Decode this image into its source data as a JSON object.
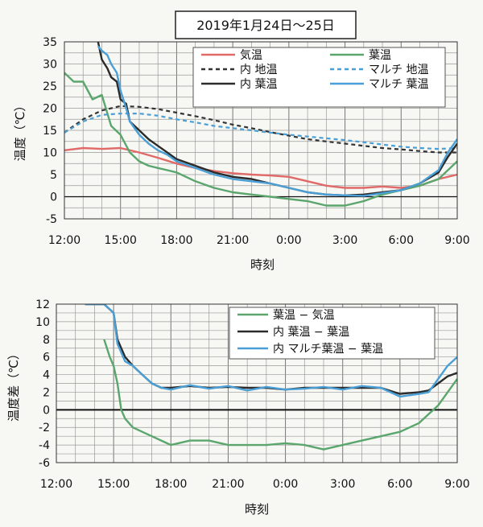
{
  "figure_title": "2019年1月24日～25日",
  "chart_data": [
    {
      "type": "line",
      "xlabel": "時刻",
      "ylabel": "温度（℃）",
      "x_ticks": [
        "12:00",
        "15:00",
        "18:00",
        "21:00",
        "0:00",
        "3:00",
        "6:00",
        "9:00"
      ],
      "x_range_hours": [
        12,
        33
      ],
      "ylim": [
        -5,
        35
      ],
      "y_ticks": [
        -5,
        0,
        5,
        10,
        15,
        20,
        25,
        30,
        35
      ],
      "grid": true,
      "legend_position": "top-right",
      "series": [
        {
          "name": "気温",
          "color": "#e06a68",
          "dash": "solid",
          "x": [
            12,
            13,
            14,
            15,
            16,
            17,
            18,
            19,
            20,
            21,
            22,
            23,
            24,
            25,
            26,
            27,
            28,
            29,
            30,
            31,
            32,
            33
          ],
          "y": [
            10.5,
            11,
            10.8,
            11,
            10,
            8.8,
            7.5,
            6.5,
            5.8,
            5.3,
            5,
            4.8,
            4.5,
            3.5,
            2.5,
            2,
            2,
            2.3,
            2,
            2.5,
            4,
            5
          ]
        },
        {
          "name": "葉温",
          "color": "#5aa66c",
          "dash": "solid",
          "x": [
            12,
            12.5,
            13,
            13.5,
            14,
            14.5,
            15,
            15.5,
            16,
            16.5,
            17,
            17.5,
            18,
            19,
            20,
            21,
            22,
            23,
            24,
            25,
            26,
            27,
            28,
            29,
            30,
            31,
            32,
            33
          ],
          "y": [
            28,
            26,
            26,
            22,
            23,
            16,
            14,
            10,
            8,
            7,
            6.5,
            6,
            5.5,
            3.5,
            2,
            1,
            0.5,
            0,
            -0.5,
            -1,
            -2,
            -2,
            -1,
            0.5,
            1.5,
            2.5,
            4,
            8
          ]
        },
        {
          "name": "内 地温",
          "color": "#333333",
          "dash": "dashed",
          "x": [
            12,
            13,
            14,
            15,
            16,
            17,
            18,
            19,
            20,
            21,
            22,
            23,
            24,
            25,
            26,
            27,
            28,
            29,
            30,
            31,
            32,
            33
          ],
          "y": [
            14.5,
            17.5,
            19.5,
            20.5,
            20.3,
            19.8,
            19,
            18.2,
            17.3,
            16.3,
            15.5,
            14.6,
            13.8,
            13,
            12.5,
            12,
            11.5,
            11,
            10.7,
            10.3,
            10,
            10
          ]
        },
        {
          "name": "マルチ 地温",
          "color": "#4a9fd6",
          "dash": "dashed",
          "x": [
            12,
            13,
            14,
            15,
            16,
            17,
            18,
            19,
            20,
            21,
            22,
            23,
            24,
            25,
            26,
            27,
            28,
            29,
            30,
            31,
            32,
            33
          ],
          "y": [
            14.5,
            17,
            18.5,
            18.8,
            18.8,
            18.3,
            17.5,
            16.8,
            16,
            15.5,
            15,
            14.5,
            14,
            13.6,
            13.2,
            12.8,
            12.3,
            11.8,
            11.3,
            11,
            10.8,
            11
          ]
        },
        {
          "name": "内 葉温",
          "color": "#2b2b2b",
          "dash": "solid",
          "x": [
            13.8,
            14,
            14.3,
            14.5,
            14.8,
            15,
            15.3,
            15.5,
            16,
            16.5,
            17,
            17.5,
            18,
            19,
            20,
            21,
            22,
            23,
            24,
            25,
            26,
            27,
            28,
            29,
            30,
            31,
            32,
            32.5,
            33
          ],
          "y": [
            35,
            31,
            29,
            27,
            26,
            22,
            21,
            17,
            15,
            13,
            11.5,
            10,
            8.5,
            7,
            5.5,
            4.5,
            4,
            3,
            2,
            1,
            0.5,
            0.3,
            0.5,
            1,
            1.5,
            3,
            5.5,
            9,
            12
          ]
        },
        {
          "name": "マルチ 葉温",
          "color": "#4a9fd6",
          "dash": "solid",
          "x": [
            13.8,
            14,
            14.3,
            14.5,
            14.8,
            15,
            15.3,
            15.5,
            16,
            16.5,
            17,
            17.5,
            18,
            19,
            20,
            21,
            22,
            23,
            24,
            25,
            26,
            27,
            28,
            29,
            30,
            31,
            32,
            32.5,
            33
          ],
          "y": [
            34,
            33,
            32,
            30,
            28,
            24,
            20,
            17,
            14,
            12,
            10.5,
            9.5,
            8,
            6.5,
            5,
            4,
            3.5,
            3,
            2,
            1,
            0.5,
            0.3,
            0.2,
            0.8,
            1.5,
            3,
            6,
            10,
            13
          ]
        }
      ]
    },
    {
      "type": "line",
      "xlabel": "時刻",
      "ylabel": "温度差（℃）",
      "x_ticks": [
        "12:00",
        "15:00",
        "18:00",
        "21:00",
        "0:00",
        "3:00",
        "6:00",
        "9:00"
      ],
      "x_range_hours": [
        12,
        33
      ],
      "ylim": [
        -6,
        12
      ],
      "y_ticks": [
        -6,
        -4,
        -2,
        0,
        2,
        4,
        6,
        8,
        10,
        12
      ],
      "grid": true,
      "legend_position": "top-right",
      "series": [
        {
          "name": "葉温 − 気温",
          "color": "#5aa66c",
          "x": [
            14.5,
            14.8,
            15,
            15.2,
            15.4,
            15.6,
            16,
            16.5,
            17,
            17.5,
            18,
            19,
            20,
            21,
            22,
            23,
            24,
            25,
            26,
            27,
            28,
            29,
            30,
            31,
            31.5,
            32,
            32.5,
            33
          ],
          "y": [
            8,
            6,
            5,
            3,
            0,
            -1,
            -2,
            -2.5,
            -3,
            -3.5,
            -4,
            -3.5,
            -3.5,
            -4,
            -4,
            -4,
            -3.8,
            -4,
            -4.5,
            -4,
            -3.5,
            -3,
            -2.5,
            -1.5,
            -0.5,
            0.5,
            2,
            3.5
          ]
        },
        {
          "name": "内 葉温 − 葉温",
          "color": "#2b2b2b",
          "x": [
            13.5,
            14,
            14.5,
            15,
            15.2,
            15.4,
            15.6,
            16,
            16.5,
            17,
            17.5,
            18,
            19,
            20,
            21,
            22,
            23,
            24,
            25,
            26,
            27,
            28,
            29,
            30,
            31,
            31.5,
            32,
            32.5,
            33
          ],
          "y": [
            12,
            12,
            12,
            11,
            8,
            7,
            6,
            5,
            4,
            3,
            2.5,
            2.5,
            2.7,
            2.5,
            2.6,
            2.5,
            2.5,
            2.3,
            2.5,
            2.5,
            2.5,
            2.5,
            2.5,
            1.8,
            2,
            2.2,
            3,
            3.8,
            4.2
          ]
        },
        {
          "name": "内 マルチ葉温 − 葉温",
          "color": "#4a9fd6",
          "x": [
            13.5,
            14,
            14.5,
            15,
            15.2,
            15.4,
            15.6,
            16,
            16.5,
            17,
            17.5,
            18,
            19,
            20,
            21,
            22,
            23,
            24,
            25,
            26,
            27,
            28,
            29,
            30,
            31,
            31.5,
            32,
            32.5,
            33
          ],
          "y": [
            12,
            12,
            12,
            11,
            7.5,
            6.5,
            5.5,
            5,
            4,
            3,
            2.5,
            2.3,
            2.8,
            2.4,
            2.7,
            2.2,
            2.6,
            2.3,
            2.4,
            2.6,
            2.3,
            2.7,
            2.5,
            1.5,
            1.8,
            2,
            3.5,
            5,
            6
          ]
        }
      ]
    }
  ]
}
